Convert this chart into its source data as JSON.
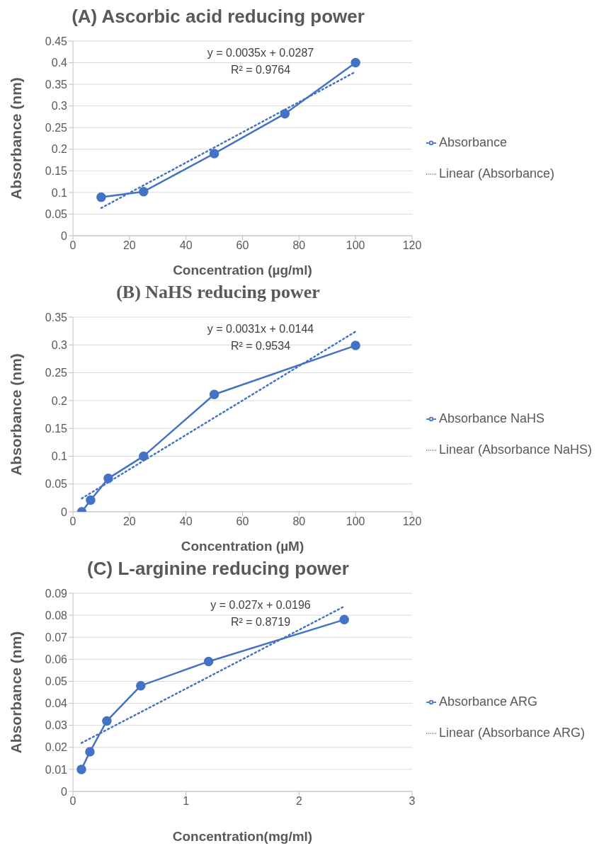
{
  "chart_data": [
    {
      "type": "line",
      "title": "(A) Ascorbic acid reducing power",
      "xlabel": "Concentration (µg/ml)",
      "ylabel": "Absorbance (nm)",
      "xlim": [
        0,
        120
      ],
      "xticks": [
        0,
        20,
        40,
        60,
        80,
        100,
        120
      ],
      "ylim": [
        0,
        0.45
      ],
      "yticks": [
        0,
        0.05,
        0.1,
        0.15,
        0.2,
        0.25,
        0.3,
        0.35,
        0.4,
        0.45
      ],
      "grid": "y",
      "legend": "right",
      "annotations": [
        "y = 0.0035x + 0.0287",
        "R² = 0.9764"
      ],
      "series": [
        {
          "name": "Absorbance",
          "color": "#4472c4",
          "x": [
            10,
            25,
            50,
            75,
            100
          ],
          "values": [
            0.089,
            0.102,
            0.19,
            0.282,
            0.4
          ],
          "marker": "circle",
          "line_style": "solid"
        },
        {
          "name": "Linear (Absorbance)",
          "color": "#4472c4",
          "x": [
            10,
            100
          ],
          "values": [
            0.064,
            0.379
          ],
          "marker": "none",
          "line_style": "dotted"
        }
      ]
    },
    {
      "type": "line",
      "title": "(B) NaHS reducing power",
      "xlabel": "Concentration (µM)",
      "ylabel": "Absorbance (nm)",
      "xlim": [
        0,
        120
      ],
      "xticks": [
        0,
        20,
        40,
        60,
        80,
        100,
        120
      ],
      "ylim": [
        0,
        0.35
      ],
      "yticks": [
        0,
        0.05,
        0.1,
        0.15,
        0.2,
        0.25,
        0.3,
        0.35
      ],
      "grid": "y",
      "legend": "right",
      "annotations": [
        "y = 0.0031x + 0.0144",
        "R² = 0.9534"
      ],
      "series": [
        {
          "name": "Absorbance NaHS",
          "color": "#4472c4",
          "x": [
            3.125,
            6.25,
            12.5,
            25,
            50,
            100
          ],
          "values": [
            0,
            0.021,
            0.06,
            0.1,
            0.211,
            0.299
          ],
          "marker": "circle",
          "line_style": "solid"
        },
        {
          "name": "Linear (Absorbance NaHS)",
          "color": "#4472c4",
          "x": [
            3.125,
            100
          ],
          "values": [
            0.024,
            0.324
          ],
          "marker": "none",
          "line_style": "dotted"
        }
      ]
    },
    {
      "type": "line",
      "title": "(C) L-arginine reducing power",
      "xlabel": "Concentration(mg/ml)",
      "ylabel": "Absorbance (nm)",
      "xlim": [
        0,
        3
      ],
      "xticks": [
        0,
        1,
        2,
        3
      ],
      "ylim": [
        0,
        0.09
      ],
      "yticks": [
        0,
        0.01,
        0.02,
        0.03,
        0.04,
        0.05,
        0.06,
        0.07,
        0.08,
        0.09
      ],
      "grid": "y",
      "legend": "right",
      "annotations": [
        "y = 0.027x + 0.0196",
        "R² = 0.8719"
      ],
      "series": [
        {
          "name": "Absorbance ARG",
          "color": "#4472c4",
          "x": [
            0.075,
            0.15,
            0.3,
            0.6,
            1.2,
            2.4
          ],
          "values": [
            0.01,
            0.018,
            0.032,
            0.048,
            0.059,
            0.078
          ],
          "marker": "circle",
          "line_style": "solid"
        },
        {
          "name": "Linear (Absorbance ARG)",
          "color": "#4472c4",
          "x": [
            0.075,
            2.4
          ],
          "values": [
            0.022,
            0.084
          ],
          "marker": "none",
          "line_style": "dotted"
        }
      ]
    }
  ]
}
